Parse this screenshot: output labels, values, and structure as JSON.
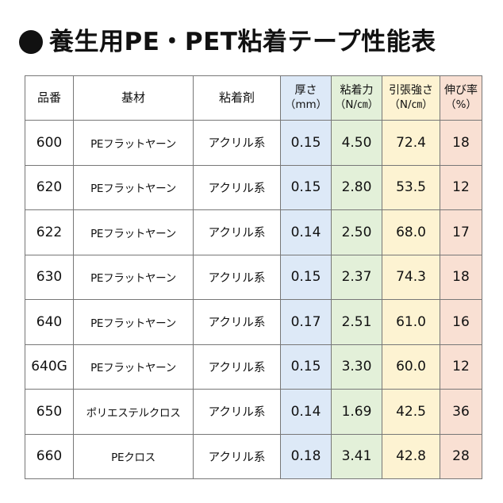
{
  "title": "養生用PE・PET粘着テープ性能表",
  "colors": {
    "thickness_bg": "#dde9f7",
    "adhesion_bg": "#e3f0d9",
    "tensile_bg": "#fdf3d2",
    "elongation_bg": "#f9e0d3"
  },
  "headers": {
    "product": "品番",
    "base": "基材",
    "adhesive": "粘着剤",
    "thickness": "厚さ",
    "thickness_unit": "（mm）",
    "adhesion": "粘着力",
    "adhesion_unit": "（N/㎝）",
    "tensile": "引張強さ",
    "tensile_unit": "（N/㎝）",
    "elongation": "伸び率",
    "elongation_unit": "（%）"
  },
  "rows": [
    {
      "product": "600",
      "base": "PEフラットヤーン",
      "adhesive": "アクリル系",
      "thickness": "0.15",
      "adhesion": "4.50",
      "tensile": "72.4",
      "elongation": "18"
    },
    {
      "product": "620",
      "base": "PEフラットヤーン",
      "adhesive": "アクリル系",
      "thickness": "0.15",
      "adhesion": "2.80",
      "tensile": "53.5",
      "elongation": "12"
    },
    {
      "product": "622",
      "base": "PEフラットヤーン",
      "adhesive": "アクリル系",
      "thickness": "0.14",
      "adhesion": "2.50",
      "tensile": "68.0",
      "elongation": "17"
    },
    {
      "product": "630",
      "base": "PEフラットヤーン",
      "adhesive": "アクリル系",
      "thickness": "0.15",
      "adhesion": "2.37",
      "tensile": "74.3",
      "elongation": "18"
    },
    {
      "product": "640",
      "base": "PEフラットヤーン",
      "adhesive": "アクリル系",
      "thickness": "0.17",
      "adhesion": "2.51",
      "tensile": "61.0",
      "elongation": "16"
    },
    {
      "product": "640G",
      "base": "PEフラットヤーン",
      "adhesive": "アクリル系",
      "thickness": "0.15",
      "adhesion": "3.30",
      "tensile": "60.0",
      "elongation": "12"
    },
    {
      "product": "650",
      "base": "ポリエステルクロス",
      "adhesive": "アクリル系",
      "thickness": "0.14",
      "adhesion": "1.69",
      "tensile": "42.5",
      "elongation": "36"
    },
    {
      "product": "660",
      "base": "PEクロス",
      "adhesive": "アクリル系",
      "thickness": "0.18",
      "adhesion": "3.41",
      "tensile": "42.8",
      "elongation": "28"
    }
  ]
}
